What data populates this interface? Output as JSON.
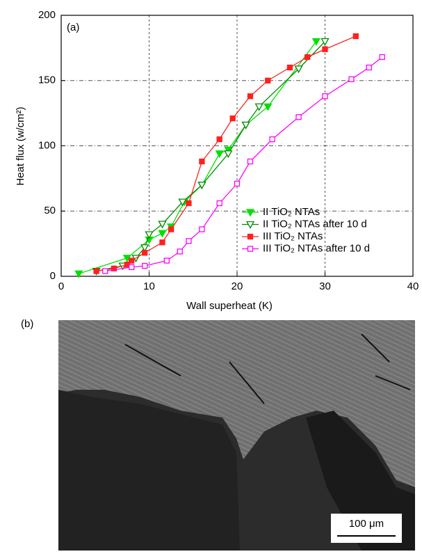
{
  "chart_data": {
    "type": "line",
    "panel_label": "(a)",
    "xlabel": "Wall superheat (K)",
    "ylabel": "Heat flux (w/cm²)",
    "xlim": [
      0,
      40
    ],
    "xticks": [
      0,
      10,
      20,
      30,
      40
    ],
    "ylim": [
      0,
      200
    ],
    "yticks": [
      0,
      50,
      100,
      150,
      200
    ],
    "grid": true,
    "legend": "lower right",
    "series": [
      {
        "name": "II TiO₂ NTAs",
        "color": "#00e000",
        "marker": "filled-triangle",
        "x": [
          2,
          7.5,
          10,
          11.5,
          12.5,
          14,
          16,
          18,
          19,
          21,
          23.5,
          29
        ],
        "values": [
          2,
          14,
          28,
          33,
          38,
          57,
          70,
          94,
          97,
          116,
          130,
          180
        ]
      },
      {
        "name": "II TiO₂ NTAs after 10 d",
        "color": "#008a00",
        "marker": "open-triangle",
        "x": [
          4,
          7,
          8.5,
          9.5,
          10,
          11.5,
          13.8,
          16,
          19,
          21,
          22.5,
          27,
          30
        ],
        "values": [
          4,
          8,
          14,
          22,
          32,
          40,
          57,
          70,
          94,
          116,
          130,
          159,
          180
        ]
      },
      {
        "name": "III TiO₂ NTAs",
        "color": "#ff2020",
        "marker": "filled-square",
        "x": [
          4,
          6,
          7.5,
          8,
          9.5,
          11.5,
          12.5,
          14.5,
          16,
          18,
          19.5,
          21.5,
          23.5,
          26,
          28,
          30,
          33.5
        ],
        "values": [
          4,
          6,
          9,
          12,
          18,
          26,
          36,
          56,
          88,
          105,
          121,
          138,
          150,
          160,
          168,
          174,
          184
        ]
      },
      {
        "name": "III TiO₂ NTAs after 10 d",
        "color": "#ff00ff",
        "marker": "open-square",
        "x": [
          5,
          8,
          9.5,
          12,
          13.5,
          14.5,
          16,
          18,
          20,
          21.5,
          24,
          27,
          30,
          33,
          35,
          36.5
        ],
        "values": [
          4,
          7,
          8,
          12,
          19,
          27,
          36,
          56,
          71,
          88,
          105,
          122,
          138,
          151,
          160,
          168
        ]
      }
    ]
  },
  "panel_b": {
    "label": "(b)",
    "scale_bar": "100 μm"
  }
}
